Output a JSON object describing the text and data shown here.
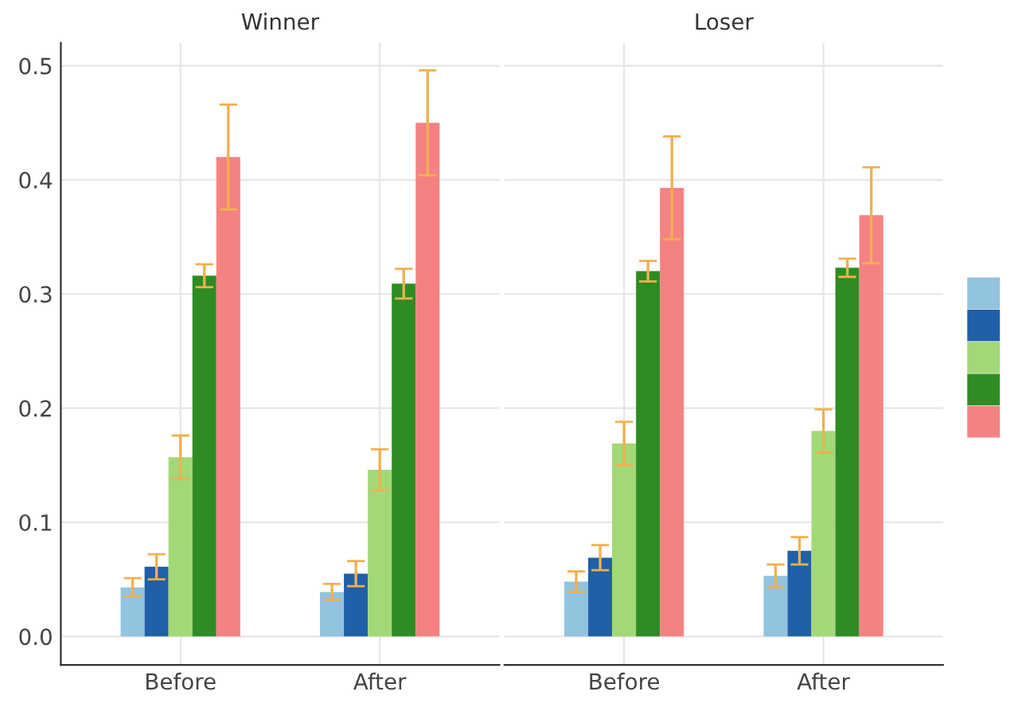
{
  "chart_data": [
    {
      "type": "bar",
      "title": "Winner",
      "categories": [
        "Before",
        "After"
      ],
      "ylim": [
        -0.025,
        0.52
      ],
      "yticks": [
        {
          "value": 0,
          "label": "0.0"
        },
        0.1,
        0.2,
        0.3,
        0.4,
        0.5
      ],
      "grid": true,
      "series": [
        {
          "color": "#92c3df",
          "values": [
            0.043,
            0.039
          ],
          "errors": [
            0.008,
            0.007
          ]
        },
        {
          "color": "#1f60a8",
          "values": [
            0.061,
            0.055
          ],
          "errors": [
            0.011,
            0.011
          ]
        },
        {
          "color": "#a3d877",
          "values": [
            0.157,
            0.146
          ],
          "errors": [
            0.019,
            0.018
          ]
        },
        {
          "color": "#2e8c23",
          "values": [
            0.316,
            0.309
          ],
          "errors": [
            0.01,
            0.013
          ]
        },
        {
          "color": "#f58282",
          "values": [
            0.42,
            0.45
          ],
          "errors": [
            0.046,
            0.046
          ]
        }
      ]
    },
    {
      "type": "bar",
      "title": "Loser",
      "categories": [
        "Before",
        "After"
      ],
      "ylim": [
        -0.025,
        0.52
      ],
      "yticks": [
        0,
        0.1,
        0.2,
        0.3,
        0.4,
        0.5
      ],
      "grid": true,
      "tick_labels": "x",
      "series": [
        {
          "color": "#92c3df",
          "values": [
            0.048,
            0.053
          ],
          "errors": [
            0.009,
            0.01
          ]
        },
        {
          "color": "#1f60a8",
          "values": [
            0.069,
            0.075
          ],
          "errors": [
            0.011,
            0.012
          ]
        },
        {
          "color": "#a3d877",
          "values": [
            0.169,
            0.18
          ],
          "errors": [
            0.019,
            0.019
          ]
        },
        {
          "color": "#2e8c23",
          "values": [
            0.32,
            0.323
          ],
          "errors": [
            0.009,
            0.008
          ]
        },
        {
          "color": "#f58282",
          "values": [
            0.393,
            0.369
          ],
          "errors": [
            0.045,
            0.042
          ]
        }
      ]
    }
  ]
}
